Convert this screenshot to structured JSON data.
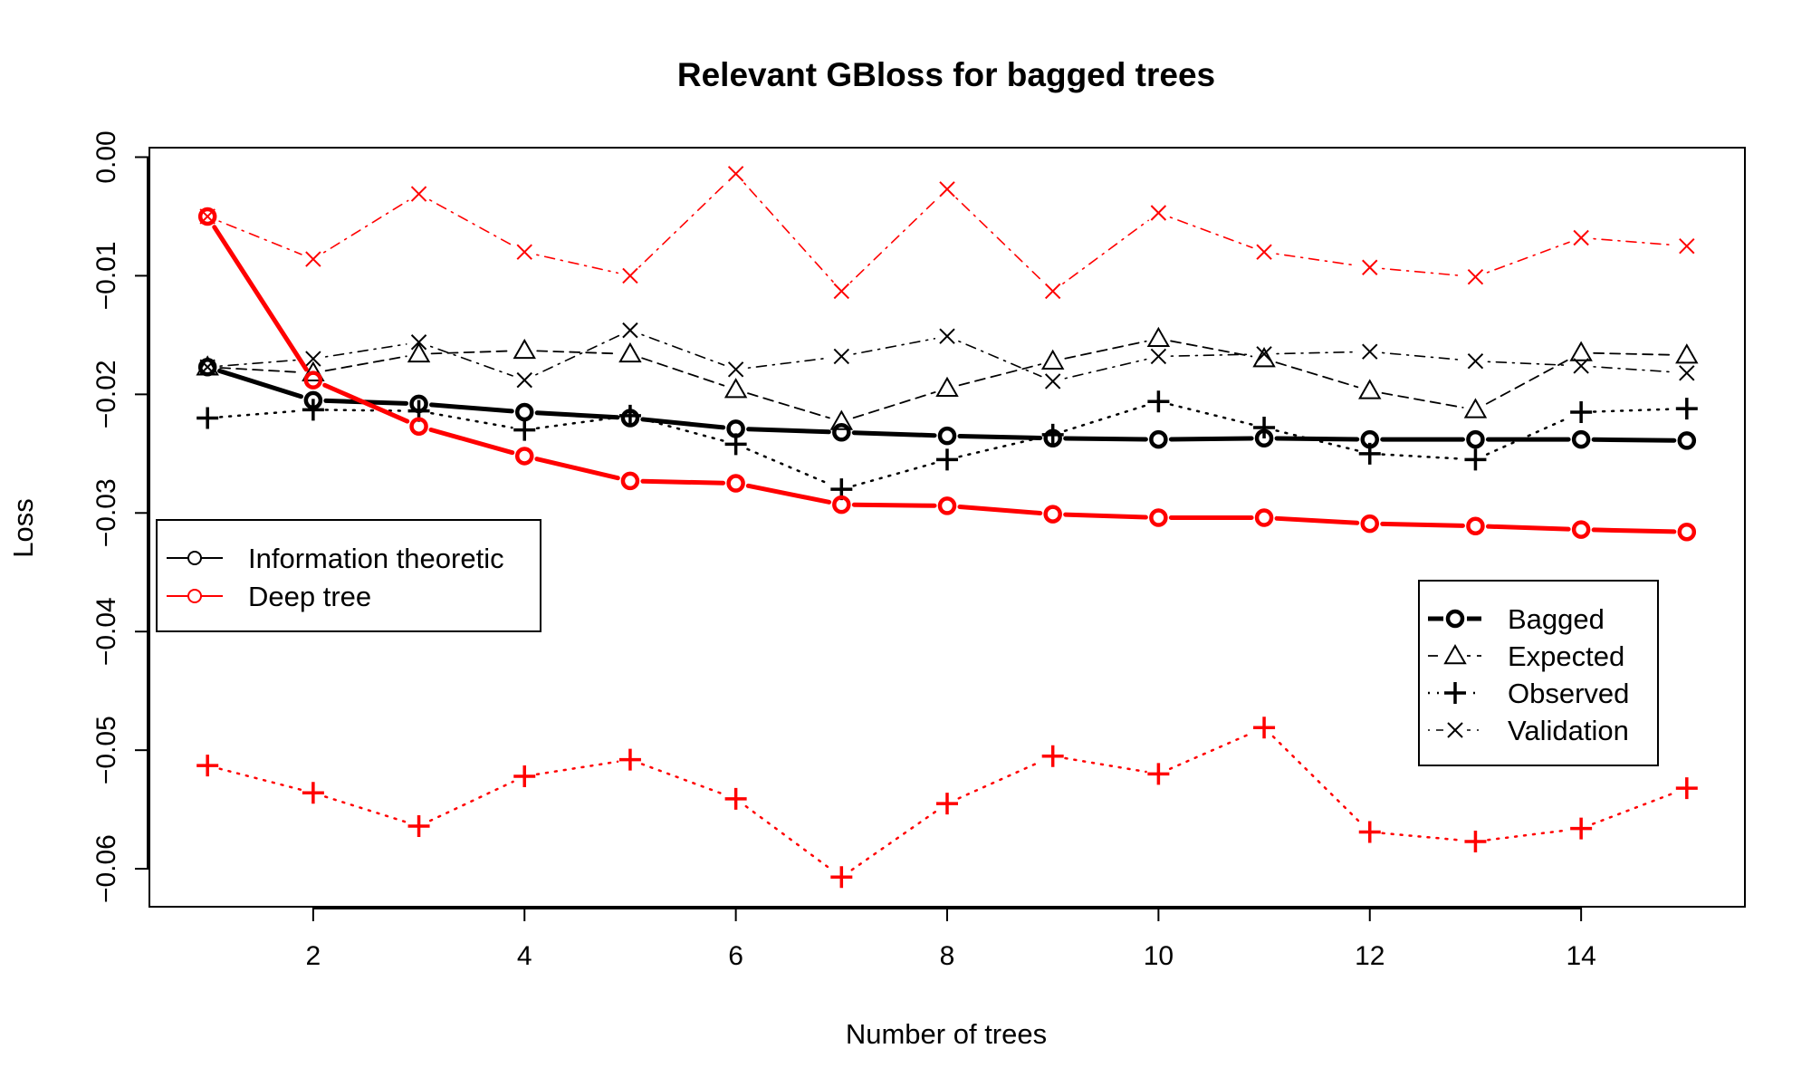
{
  "chart_data": {
    "type": "line",
    "title": "Relevant GBloss for bagged trees",
    "xlabel": "Number of trees",
    "ylabel": "Loss",
    "xlim": [
      0.45,
      15.55
    ],
    "ylim": [
      -0.0632,
      0.0008
    ],
    "x_ticks": [
      2,
      4,
      6,
      8,
      10,
      12,
      14
    ],
    "y_ticks": [
      0.0,
      -0.01,
      -0.02,
      -0.03,
      -0.04,
      -0.05,
      -0.06
    ],
    "y_tick_labels": [
      "0.00",
      "−0.01",
      "−0.02",
      "−0.03",
      "−0.04",
      "−0.05",
      "−0.06"
    ],
    "x": [
      1,
      2,
      3,
      4,
      5,
      6,
      7,
      8,
      9,
      10,
      11,
      12,
      13,
      14,
      15
    ],
    "series": [
      {
        "method": "Information theoretic",
        "measure": "Bagged",
        "color": "#000000",
        "values": [
          -0.0177,
          -0.0205,
          -0.0208,
          -0.0215,
          -0.022,
          -0.0229,
          -0.0232,
          -0.0235,
          -0.0237,
          -0.0238,
          -0.0237,
          -0.0238,
          -0.0238,
          -0.0238,
          -0.0239
        ]
      },
      {
        "method": "Information theoretic",
        "measure": "Expected",
        "color": "#000000",
        "values": [
          -0.0177,
          -0.0182,
          -0.0166,
          -0.0163,
          -0.0166,
          -0.0196,
          -0.0223,
          -0.0195,
          -0.0172,
          -0.0153,
          -0.017,
          -0.0197,
          -0.0213,
          -0.0165,
          -0.0167
        ]
      },
      {
        "method": "Information theoretic",
        "measure": "Observed",
        "color": "#000000",
        "values": [
          -0.022,
          -0.0213,
          -0.0214,
          -0.023,
          -0.0218,
          -0.0242,
          -0.028,
          -0.0255,
          -0.0234,
          -0.0206,
          -0.0228,
          -0.025,
          -0.0255,
          -0.0215,
          -0.0212
        ]
      },
      {
        "method": "Information theoretic",
        "measure": "Validation",
        "color": "#000000",
        "values": [
          -0.0177,
          -0.017,
          -0.0156,
          -0.0188,
          -0.0146,
          -0.0179,
          -0.0168,
          -0.0151,
          -0.0189,
          -0.0168,
          -0.0166,
          -0.0164,
          -0.0172,
          -0.0176,
          -0.0182
        ]
      },
      {
        "method": "Deep tree",
        "measure": "Bagged",
        "color": "#ff0000",
        "values": [
          -0.005,
          -0.0188,
          -0.0227,
          -0.0252,
          -0.0273,
          -0.0275,
          -0.0293,
          -0.0294,
          -0.0301,
          -0.0304,
          -0.0304,
          -0.0309,
          -0.0311,
          -0.0314,
          -0.0316
        ]
      },
      {
        "method": "Deep tree",
        "measure": "Observed",
        "color": "#ff0000",
        "values": [
          -0.0513,
          -0.0536,
          -0.0564,
          -0.0522,
          -0.0508,
          -0.0541,
          -0.0607,
          -0.0545,
          -0.0505,
          -0.052,
          -0.0481,
          -0.0569,
          -0.0577,
          -0.0566,
          -0.0532
        ]
      },
      {
        "method": "Deep tree",
        "measure": "Validation",
        "color": "#ff0000",
        "values": [
          -0.005,
          -0.0086,
          -0.0031,
          -0.008,
          -0.01,
          -0.0014,
          -0.0113,
          -0.0027,
          -0.0113,
          -0.0047,
          -0.008,
          -0.0093,
          -0.0101,
          -0.0068,
          -0.0075
        ]
      }
    ],
    "legend_methods": {
      "placement": "left",
      "items": [
        {
          "label": "Information theoretic",
          "color": "#000000"
        },
        {
          "label": "Deep tree",
          "color": "#ff0000"
        }
      ]
    },
    "legend_measures": {
      "placement": "right",
      "items": [
        {
          "label": "Bagged",
          "marker": "circle",
          "line": "solid-thick"
        },
        {
          "label": "Expected",
          "marker": "triangle",
          "line": "dashed"
        },
        {
          "label": "Observed",
          "marker": "plus",
          "line": "dotted"
        },
        {
          "label": "Validation",
          "marker": "cross",
          "line": "dotdash"
        }
      ]
    },
    "grid": false
  }
}
